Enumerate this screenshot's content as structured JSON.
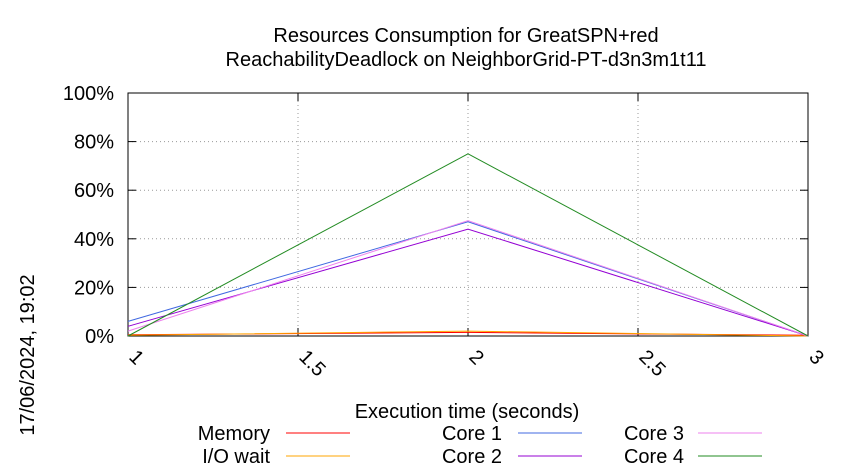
{
  "chart_data": {
    "type": "line",
    "title_line1": "Resources Consumption for GreatSPN+red",
    "title_line2": "ReachabilityDeadlock on NeighborGrid-PT-d3n3m1t11",
    "xlabel": "Execution time (seconds)",
    "ylabel": "",
    "timestamp": "17/06/2024, 19:02",
    "xlim": [
      1,
      3
    ],
    "ylim": [
      0,
      100
    ],
    "x_ticks": [
      {
        "value": 1,
        "label": "1"
      },
      {
        "value": 1.5,
        "label": "1.5"
      },
      {
        "value": 2,
        "label": "2"
      },
      {
        "value": 2.5,
        "label": "2.5"
      },
      {
        "value": 3,
        "label": "3"
      }
    ],
    "y_ticks": [
      {
        "value": 0,
        "label": "0%"
      },
      {
        "value": 20,
        "label": "20%"
      },
      {
        "value": 40,
        "label": "40%"
      },
      {
        "value": 60,
        "label": "60%"
      },
      {
        "value": 80,
        "label": "80%"
      },
      {
        "value": 100,
        "label": "100%"
      }
    ],
    "grid": true,
    "legend_position": "bottom",
    "x": [
      1,
      2,
      3
    ],
    "series": [
      {
        "name": "Memory",
        "color": "#ff0000",
        "values": [
          0.5,
          1.5,
          0.3
        ]
      },
      {
        "name": "I/O wait",
        "color": "#ffa500",
        "values": [
          0.3,
          2.0,
          0.0
        ]
      },
      {
        "name": "Core 1",
        "color": "#4169e1",
        "values": [
          6.0,
          47.0,
          0.0
        ]
      },
      {
        "name": "Core 2",
        "color": "#9400d3",
        "values": [
          4.0,
          44.0,
          0.0
        ]
      },
      {
        "name": "Core 3",
        "color": "#ee82ee",
        "values": [
          2.0,
          47.5,
          0.0
        ]
      },
      {
        "name": "Core 4",
        "color": "#228b22",
        "values": [
          0.0,
          75.0,
          0.0
        ]
      }
    ]
  }
}
